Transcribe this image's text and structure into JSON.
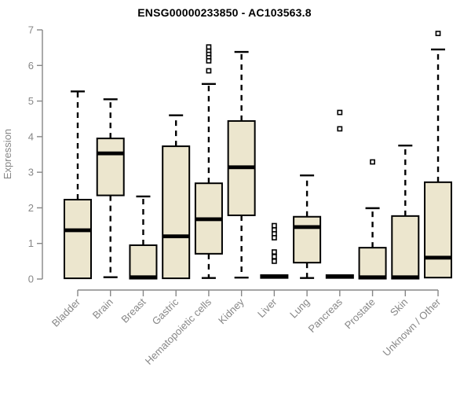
{
  "chart_data": {
    "type": "boxplot",
    "title": "ENSG00000233850 - AC103563.8",
    "xlabel": "",
    "ylabel": "Expression",
    "ylim": [
      0,
      7
    ],
    "yticks": [
      0,
      1,
      2,
      3,
      4,
      5,
      6,
      7
    ],
    "grid": false,
    "x_label_rotation": 45,
    "categories": [
      "Bladder",
      "Brain",
      "Breast",
      "Gastric",
      "Hematopoietic cells",
      "Kidney",
      "Liver",
      "Lung",
      "Pancreas",
      "Prostate",
      "Skin",
      "Unknown / Other"
    ],
    "series": [
      {
        "category": "Bladder",
        "whisker_low": 0,
        "q1": 0.02,
        "median": 1.37,
        "q3": 2.23,
        "whisker_high": 5.27,
        "outliers": []
      },
      {
        "category": "Brain",
        "whisker_low": 0.05,
        "q1": 2.35,
        "median": 3.53,
        "q3": 3.95,
        "whisker_high": 5.05,
        "outliers": []
      },
      {
        "category": "Breast",
        "whisker_low": 0,
        "q1": 0.01,
        "median": 0.05,
        "q3": 0.95,
        "whisker_high": 2.32,
        "outliers": []
      },
      {
        "category": "Gastric",
        "whisker_low": 0.02,
        "q1": 0.02,
        "median": 1.2,
        "q3": 3.73,
        "whisker_high": 4.6,
        "outliers": []
      },
      {
        "category": "Hematopoietic cells",
        "whisker_low": 0.03,
        "q1": 0.71,
        "median": 1.68,
        "q3": 2.69,
        "whisker_high": 5.48,
        "outliers": [
          6.52,
          6.4,
          6.31,
          6.22,
          6.13,
          5.85
        ]
      },
      {
        "category": "Kidney",
        "whisker_low": 0.04,
        "q1": 1.79,
        "median": 3.14,
        "q3": 4.44,
        "whisker_high": 6.38,
        "outliers": []
      },
      {
        "category": "Liver",
        "whisker_low": 0.02,
        "q1": 0.03,
        "median": 0.07,
        "q3": 0.11,
        "whisker_high": 0.11,
        "outliers": [
          1.5,
          1.38,
          1.27,
          1.16,
          0.76,
          0.63,
          0.5
        ]
      },
      {
        "category": "Lung",
        "whisker_low": 0.03,
        "q1": 0.46,
        "median": 1.46,
        "q3": 1.75,
        "whisker_high": 2.91,
        "outliers": []
      },
      {
        "category": "Pancreas",
        "whisker_low": 0.02,
        "q1": 0.03,
        "median": 0.07,
        "q3": 0.11,
        "whisker_high": 0.11,
        "outliers": [
          4.68,
          4.22
        ]
      },
      {
        "category": "Prostate",
        "whisker_low": 0,
        "q1": 0.01,
        "median": 0.05,
        "q3": 0.88,
        "whisker_high": 1.99,
        "outliers": [
          3.29
        ]
      },
      {
        "category": "Skin",
        "whisker_low": 0,
        "q1": 0.01,
        "median": 0.05,
        "q3": 1.77,
        "whisker_high": 3.75,
        "outliers": []
      },
      {
        "category": "Unknown / Other",
        "whisker_low": 0.04,
        "q1": 0.04,
        "median": 0.6,
        "q3": 2.72,
        "whisker_high": 6.45,
        "outliers": [
          6.9
        ]
      }
    ],
    "colors": {
      "box_fill": "#ECE6CE",
      "box_border": "#000000",
      "median": "#000000",
      "whisker": "#000000",
      "outlier_stroke": "#000000",
      "outlier_fill": "#ffffff",
      "axis": "#878787",
      "tick_label": "#878787",
      "title": "#000000"
    }
  }
}
